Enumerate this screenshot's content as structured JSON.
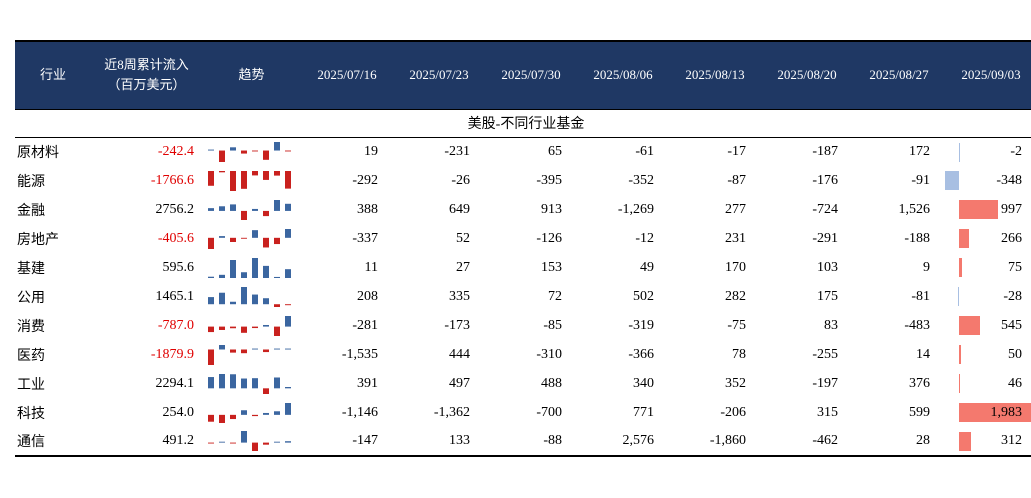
{
  "section_title": "美股-不同行业基金",
  "colors": {
    "header_bg": "#1f3864",
    "header_text": "#ffffff",
    "negative_text": "#e00000",
    "border": "#000000"
  },
  "chart_data": {
    "type": "table",
    "title": "美股-不同行业基金",
    "columns": [
      "行业",
      "近8周累计流入（百万美元）",
      "趋势",
      "2025/07/16",
      "2025/07/23",
      "2025/07/30",
      "2025/08/06",
      "2025/08/13",
      "2025/08/20",
      "2025/08/27",
      "2025/09/03"
    ],
    "unit": "百万美元",
    "rows": [
      {
        "industry": "原材料",
        "cumulative": "-242.4",
        "weekly": [
          19,
          -231,
          65,
          -61,
          -17,
          -187,
          172,
          -2
        ]
      },
      {
        "industry": "能源",
        "cumulative": "-1766.6",
        "weekly": [
          -292,
          -26,
          -395,
          -352,
          -87,
          -176,
          -91,
          -348
        ]
      },
      {
        "industry": "金融",
        "cumulative": "2756.2",
        "weekly": [
          388,
          649,
          913,
          -1269,
          277,
          -724,
          1526,
          997
        ]
      },
      {
        "industry": "房地产",
        "cumulative": "-405.6",
        "weekly": [
          -337,
          52,
          -126,
          -12,
          231,
          -291,
          -188,
          266
        ]
      },
      {
        "industry": "基建",
        "cumulative": "595.6",
        "weekly": [
          11,
          27,
          153,
          49,
          170,
          103,
          9,
          75
        ]
      },
      {
        "industry": "公用",
        "cumulative": "1465.1",
        "weekly": [
          208,
          335,
          72,
          502,
          282,
          175,
          -81,
          -28
        ]
      },
      {
        "industry": "消费",
        "cumulative": "-787.0",
        "weekly": [
          -281,
          -173,
          -85,
          -319,
          -75,
          83,
          -483,
          545
        ]
      },
      {
        "industry": "医药",
        "cumulative": "-1879.9",
        "weekly": [
          -1535,
          444,
          -310,
          -366,
          78,
          -255,
          14,
          50
        ]
      },
      {
        "industry": "工业",
        "cumulative": "2294.1",
        "weekly": [
          391,
          497,
          488,
          340,
          352,
          -197,
          376,
          46
        ]
      },
      {
        "industry": "科技",
        "cumulative": "254.0",
        "weekly": [
          -1146,
          -1362,
          -700,
          771,
          -206,
          315,
          599,
          1983
        ]
      },
      {
        "industry": "通信",
        "cumulative": "491.2",
        "weekly": [
          -147,
          133,
          -88,
          2576,
          -1860,
          -462,
          28,
          312
        ]
      }
    ],
    "sparkline": {
      "note": "趋势 column shows per-row column sparkline of the 8 weekly flows",
      "positive_color": "#3b66a0",
      "negative_color": "#c9211e"
    },
    "databar": {
      "column": "2025/09/03",
      "note": "last column has in-cell data bars; red = positive, light blue = negative",
      "positive_color": "#f4796e",
      "negative_color": "#a8bfe2",
      "scale_min": -348,
      "scale_max": 1983
    },
    "legend_position": "none",
    "grid": false
  }
}
